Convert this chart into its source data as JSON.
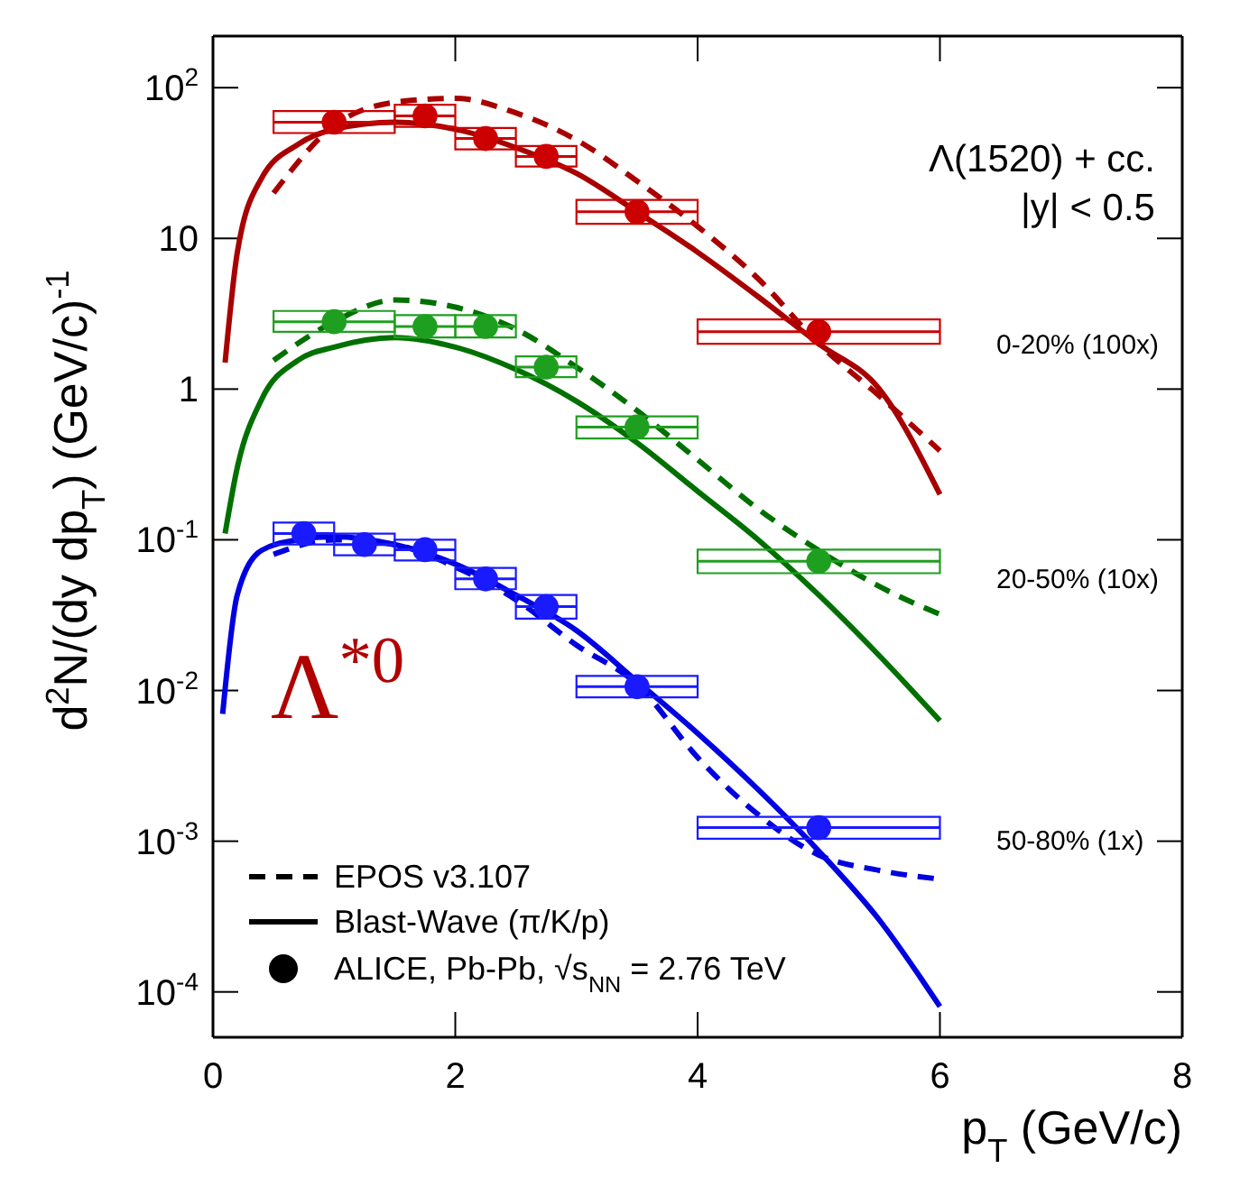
{
  "chart_data": {
    "type": "line",
    "xlabel": "p$_{T}$ (GeV/c)",
    "ylabel": "d$^{2}$N/(dy dp$_{T}$) (GeV/c)$^{-1}$",
    "log": "y",
    "grid": false,
    "xlim": [
      0,
      8
    ],
    "xticks": [
      0,
      2,
      4,
      6,
      8
    ],
    "ylim": [
      5e-05,
      220
    ],
    "yticks": [
      {
        "value": 100,
        "label": "10$^{2}$"
      },
      10,
      1,
      {
        "value": 0.1,
        "label": "10$^{-1}$"
      },
      {
        "value": 0.01,
        "label": "10$^{-2}$"
      },
      {
        "value": 0.001,
        "label": "10$^{-3}$"
      },
      {
        "value": 0.0001,
        "label": "10$^{-4}$"
      }
    ],
    "annotations": [
      "Λ(1520) + cc.",
      "|y| < 0.5",
      "0-20% (100x)",
      "20-50% (10x)",
      "50-80% (1x)",
      "Λ$^{*0}$",
      "EPOS v3.107",
      "Blast-Wave (π/K/p)",
      "ALICE, Pb-Pb, √s$_{NN}$ = 2.76 TeV"
    ],
    "series": [
      {
        "line_style": "solid",
        "color": "#a80000",
        "x": [
          0.1,
          0.2,
          0.4,
          0.7,
          1.0,
          1.5,
          2.0,
          2.5,
          3.0,
          3.5,
          4.0,
          4.5,
          5.0,
          5.5,
          6.0
        ],
        "values": [
          1.5,
          8,
          25,
          42,
          53,
          59,
          53,
          40,
          27,
          15,
          8.1,
          4.1,
          2.0,
          1.0,
          0.2
        ]
      },
      {
        "line_style": "dashed",
        "color": "#a80000",
        "x": [
          0.5,
          1.0,
          1.5,
          2.0,
          2.5,
          3.0,
          3.5,
          4.0,
          4.5,
          5.0,
          5.5,
          6.0
        ],
        "values": [
          20,
          56,
          80,
          85,
          68,
          45,
          24,
          12,
          5.4,
          2.0,
          0.9,
          0.39
        ]
      },
      {
        "line_style": "solid",
        "color": "#007000",
        "x": [
          0.1,
          0.2,
          0.4,
          0.7,
          1.0,
          1.5,
          2.0,
          2.5,
          3.0,
          3.5,
          4.0,
          4.5,
          5.0,
          5.5,
          6.0
        ],
        "values": [
          0.11,
          0.3,
          0.85,
          1.55,
          1.9,
          2.2,
          1.9,
          1.35,
          0.83,
          0.44,
          0.21,
          0.1,
          0.043,
          0.017,
          0.0063
        ]
      },
      {
        "line_style": "dashed",
        "color": "#007000",
        "x": [
          0.5,
          1.0,
          1.5,
          2.0,
          2.5,
          3.0,
          3.5,
          4.0,
          4.5,
          5.0,
          5.5,
          6.0
        ],
        "values": [
          1.55,
          2.8,
          3.9,
          3.5,
          2.5,
          1.4,
          0.72,
          0.34,
          0.16,
          0.085,
          0.049,
          0.032
        ]
      },
      {
        "line_style": "solid",
        "color": "#0000e0",
        "x": [
          0.08,
          0.2,
          0.4,
          0.7,
          1.0,
          1.5,
          2.0,
          2.5,
          3.0,
          3.5,
          4.0,
          4.5,
          5.0,
          5.5,
          6.0
        ],
        "values": [
          0.007,
          0.043,
          0.085,
          0.1,
          0.105,
          0.093,
          0.069,
          0.043,
          0.025,
          0.0115,
          0.0052,
          0.0022,
          0.00086,
          0.0003,
          8e-05
        ]
      },
      {
        "line_style": "dashed",
        "color": "#0000e0",
        "x": [
          0.5,
          1.0,
          1.5,
          2.0,
          2.5,
          3.0,
          3.5,
          4.0,
          4.5,
          5.0,
          5.5,
          6.0
        ],
        "values": [
          0.08,
          0.1,
          0.093,
          0.066,
          0.04,
          0.02,
          0.011,
          0.0036,
          0.0015,
          0.00081,
          0.00064,
          0.00056
        ]
      },
      {
        "type": "scatter",
        "marker": "circle",
        "color": "#cc0000",
        "x": [
          1.0,
          1.75,
          2.25,
          2.75,
          3.5,
          5.0
        ],
        "values": [
          59,
          65,
          46,
          35,
          15,
          2.4
        ],
        "errors": [
          [
            50,
            70
          ],
          [
            55,
            77
          ],
          [
            39,
            54
          ],
          [
            30,
            41
          ],
          [
            12.5,
            18
          ],
          [
            2.0,
            2.9
          ]
        ],
        "xerrors": [
          [
            0.5,
            1.5
          ],
          [
            1.5,
            2.0
          ],
          [
            2.0,
            2.5
          ],
          [
            2.5,
            3.0
          ],
          [
            3.0,
            4.0
          ],
          [
            4.0,
            6.0
          ]
        ]
      },
      {
        "type": "scatter",
        "marker": "circle",
        "color": "#1f9f1f",
        "x": [
          1.0,
          1.75,
          2.25,
          2.75,
          3.5,
          5.0
        ],
        "values": [
          2.8,
          2.6,
          2.6,
          1.4,
          0.56,
          0.072
        ],
        "errors": [
          [
            2.4,
            3.3
          ],
          [
            2.2,
            3.1
          ],
          [
            2.2,
            3.1
          ],
          [
            1.2,
            1.65
          ],
          [
            0.47,
            0.66
          ],
          [
            0.06,
            0.086
          ]
        ],
        "xerrors": [
          [
            0.5,
            1.5
          ],
          [
            1.5,
            2.0
          ],
          [
            2.0,
            2.5
          ],
          [
            2.5,
            3.0
          ],
          [
            3.0,
            4.0
          ],
          [
            4.0,
            6.0
          ]
        ]
      },
      {
        "type": "scatter",
        "marker": "circle",
        "color": "#1a1aff",
        "x": [
          0.75,
          1.25,
          1.75,
          2.25,
          2.75,
          3.5,
          5.0
        ],
        "values": [
          0.11,
          0.093,
          0.086,
          0.055,
          0.036,
          0.0106,
          0.00123
        ],
        "errors": [
          [
            0.093,
            0.13
          ],
          [
            0.079,
            0.11
          ],
          [
            0.073,
            0.1
          ],
          [
            0.047,
            0.065
          ],
          [
            0.03,
            0.043
          ],
          [
            0.009,
            0.0125
          ],
          [
            0.00104,
            0.00145
          ]
        ],
        "xerrors": [
          [
            0.5,
            1.0
          ],
          [
            1.0,
            1.5
          ],
          [
            1.5,
            2.0
          ],
          [
            2.0,
            2.5
          ],
          [
            2.5,
            3.0
          ],
          [
            3.0,
            4.0
          ],
          [
            4.0,
            6.0
          ]
        ]
      }
    ]
  }
}
